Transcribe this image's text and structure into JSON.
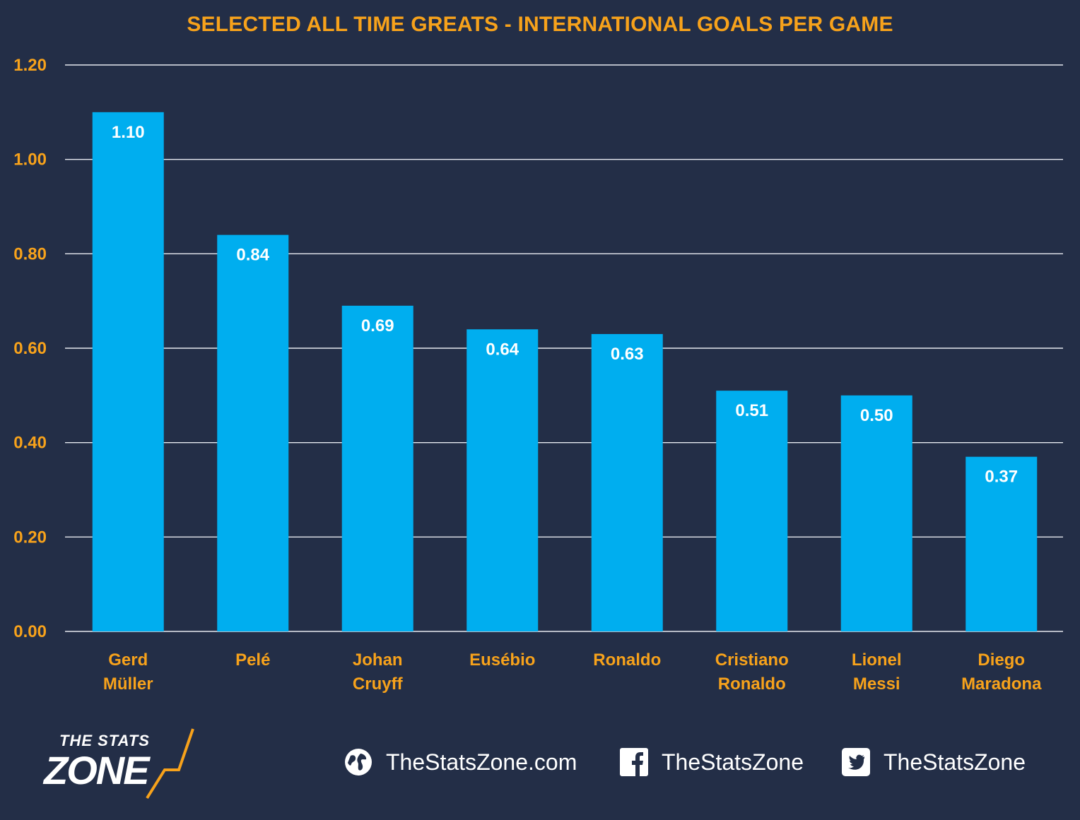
{
  "chart_data": {
    "type": "bar",
    "title": "SELECTED ALL TIME GREATS - INTERNATIONAL GOALS PER GAME",
    "categories": [
      [
        "Gerd",
        "Müller"
      ],
      [
        "Pelé"
      ],
      [
        "Johan",
        "Cruyff"
      ],
      [
        "Eusébio"
      ],
      [
        "Ronaldo"
      ],
      [
        "Cristiano",
        "Ronaldo"
      ],
      [
        "Lionel",
        "Messi"
      ],
      [
        "Diego",
        "Maradona"
      ]
    ],
    "values": [
      1.1,
      0.84,
      0.69,
      0.64,
      0.63,
      0.51,
      0.5,
      0.37
    ],
    "value_labels": [
      "1.10",
      "0.84",
      "0.69",
      "0.64",
      "0.63",
      "0.51",
      "0.50",
      "0.37"
    ],
    "yticks": [
      "0.00",
      "0.20",
      "0.40",
      "0.60",
      "0.80",
      "1.00",
      "1.20"
    ],
    "ylim": [
      0,
      1.2
    ],
    "grid": true,
    "bar_color": "#00aeef",
    "label_color": "#f7a21b",
    "background": "#232e47"
  },
  "footer": {
    "logo": {
      "top": "THE STATS",
      "main": "ZONE"
    },
    "website": "TheStatsZone.com",
    "facebook": "TheStatsZone",
    "twitter": "TheStatsZone"
  }
}
